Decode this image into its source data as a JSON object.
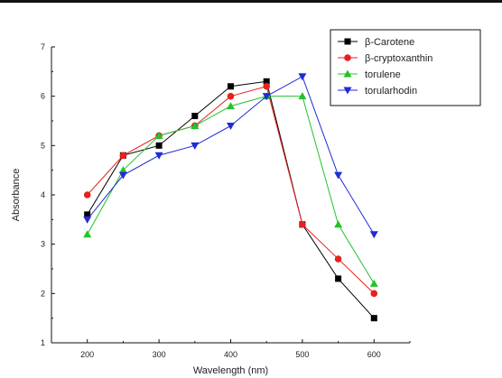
{
  "chart_data": {
    "type": "line",
    "xlabel": "Wavelength (nm)",
    "ylabel": "Absorbance",
    "xlim": [
      150,
      650
    ],
    "ylim": [
      1,
      7
    ],
    "xticks": [
      200,
      300,
      400,
      500,
      600
    ],
    "yticks": [
      1,
      2,
      3,
      4,
      5,
      6,
      7
    ],
    "grid": false,
    "legend_position": "top-right",
    "x": [
      200,
      250,
      300,
      350,
      400,
      450,
      500,
      550,
      600
    ],
    "series": [
      {
        "name": "β-Carotene",
        "color": "#000000",
        "marker": "square",
        "values": [
          3.6,
          4.8,
          5.0,
          5.6,
          6.2,
          6.3,
          3.4,
          2.3,
          1.5
        ]
      },
      {
        "name": "β-cryptoxanthin",
        "color": "#e8201e",
        "marker": "circle",
        "values": [
          4.0,
          4.8,
          5.2,
          5.4,
          6.0,
          6.2,
          3.4,
          2.7,
          2.0
        ]
      },
      {
        "name": "torulene",
        "color": "#22c32a",
        "marker": "triangle-up",
        "values": [
          3.2,
          4.5,
          5.2,
          5.4,
          5.8,
          6.0,
          6.0,
          3.4,
          2.2
        ]
      },
      {
        "name": "torularhodin",
        "color": "#1f2bd6",
        "marker": "triangle-down",
        "values": [
          3.5,
          4.4,
          4.8,
          5.0,
          5.4,
          6.0,
          6.4,
          4.4,
          3.2
        ]
      }
    ]
  }
}
